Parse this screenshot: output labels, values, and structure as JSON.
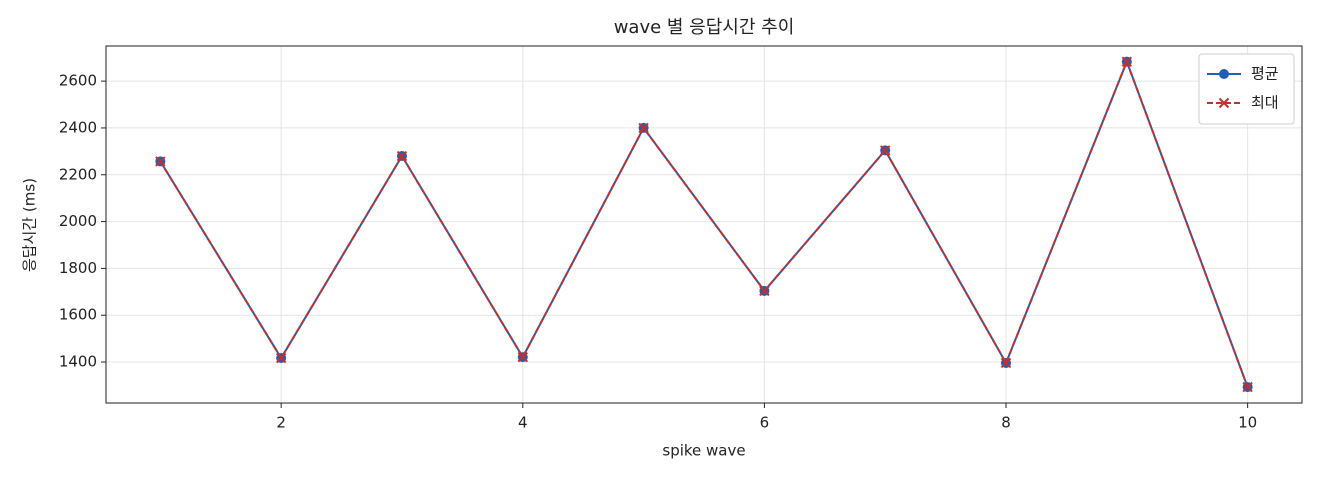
{
  "chart_data": {
    "type": "line",
    "title": "wave 별 응답시간 추이",
    "xlabel": "spike wave",
    "ylabel": "응답시간 (ms)",
    "x": [
      1,
      2,
      3,
      4,
      5,
      6,
      7,
      8,
      9,
      10
    ],
    "series": [
      {
        "name": "평균",
        "color": "#1f5fb4",
        "marker": "o",
        "dash": false,
        "values": [
          2257,
          1417,
          2280,
          1421,
          2400,
          1704,
          2304,
          1396,
          2683,
          1293
        ]
      },
      {
        "name": "최대",
        "color": "#c62f2f",
        "marker": "x",
        "dash": true,
        "values": [
          2257,
          1417,
          2280,
          1421,
          2400,
          1704,
          2304,
          1396,
          2683,
          1293
        ]
      }
    ],
    "xlim": [
      0.55,
      10.45
    ],
    "ylim": [
      1225,
      2750
    ],
    "xticks": [
      2,
      4,
      6,
      8,
      10
    ],
    "yticks": [
      1400,
      1600,
      1800,
      2000,
      2200,
      2400,
      2600
    ],
    "grid": true,
    "legend": "upper right"
  }
}
